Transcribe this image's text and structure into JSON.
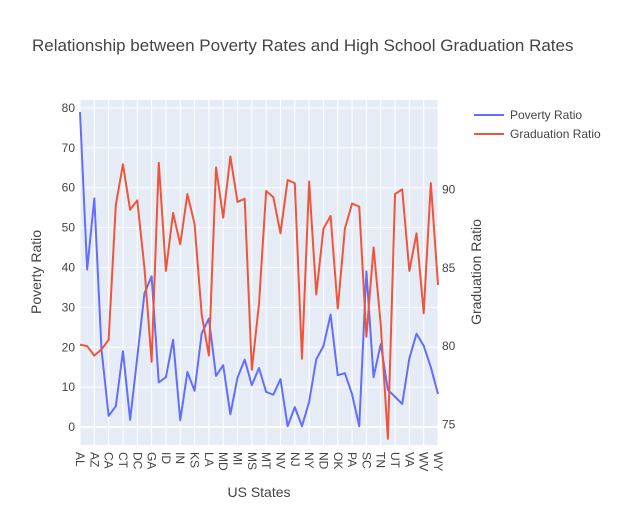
{
  "chart_data": {
    "type": "line",
    "title": "Relationship between Poverty Rates and High School Graduation Rates",
    "xlabel": "US States",
    "ylabel": "Poverty Ratio",
    "y2label": "Graduation Ratio",
    "grid": true,
    "legend_position": "top-right",
    "background": "#e5ecf6",
    "x_tick_labels": [
      "AL",
      "AZ",
      "CA",
      "CT",
      "DC",
      "GA",
      "ID",
      "IN",
      "KS",
      "LA",
      "MD",
      "MI",
      "MS",
      "MT",
      "NV",
      "NJ",
      "NY",
      "ND",
      "OK",
      "PA",
      "SC",
      "TN",
      "UT",
      "VA",
      "WV",
      "WY"
    ],
    "x": [
      "AL",
      "AK",
      "AZ",
      "AR",
      "CA",
      "CO",
      "CT",
      "DE",
      "DC",
      "FL",
      "GA",
      "HI",
      "ID",
      "IL",
      "IN",
      "IA",
      "KS",
      "KY",
      "LA",
      "ME",
      "MD",
      "MA",
      "MI",
      "MN",
      "MS",
      "MO",
      "MT",
      "NE",
      "NV",
      "NH",
      "NJ",
      "NM",
      "NY",
      "NC",
      "ND",
      "OH",
      "OK",
      "OR",
      "PA",
      "RI",
      "SC",
      "SD",
      "TN",
      "TX",
      "UT",
      "VT",
      "VA",
      "WA",
      "WV",
      "WI",
      "WY"
    ],
    "ylim": [
      -4.5,
      82
    ],
    "y_ticks": [
      0,
      10,
      20,
      30,
      40,
      50,
      60,
      70,
      80
    ],
    "y2lim": [
      73.7,
      95.7
    ],
    "y2_ticks": [
      75,
      80,
      85,
      90
    ],
    "series": [
      {
        "name": "Poverty Ratio",
        "axis": "y",
        "color": "#636efa",
        "values": [
          79,
          39.5,
          57.3,
          19.5,
          2.8,
          5.2,
          19,
          1.8,
          17.5,
          33.5,
          37.8,
          11.2,
          12.5,
          21.9,
          1.7,
          13.8,
          9.1,
          23.5,
          27.2,
          12.8,
          15.5,
          3.2,
          12.4,
          16.9,
          10.5,
          14.8,
          8.8,
          8.1,
          12,
          0.2,
          5,
          0.2,
          6.3,
          17,
          20.3,
          28.2,
          13,
          13.5,
          8.2,
          0.2,
          39,
          12.5,
          20.8,
          9.3,
          7.6,
          5.8,
          17.2,
          23.4,
          20.4,
          15,
          8.3
        ]
      },
      {
        "name": "Graduation Ratio",
        "axis": "y2",
        "color": "#ef553b",
        "values": [
          80.1,
          80,
          79.4,
          79.8,
          80.4,
          89,
          91.6,
          88.7,
          89.3,
          85,
          79,
          91.7,
          84.8,
          88.5,
          86.5,
          89.7,
          87.8,
          82,
          79.4,
          91.4,
          88.2,
          92.1,
          89.2,
          89.4,
          78.5,
          82.7,
          89.9,
          89.5,
          87.2,
          90.6,
          90.4,
          79.2,
          90.5,
          83.3,
          87.5,
          88.3,
          82.4,
          87.5,
          89.1,
          88.9,
          80.6,
          86.3,
          81.4,
          74.1,
          89.7,
          90,
          84.8,
          87.2,
          82.1,
          90.4,
          83.9
        ]
      }
    ]
  }
}
